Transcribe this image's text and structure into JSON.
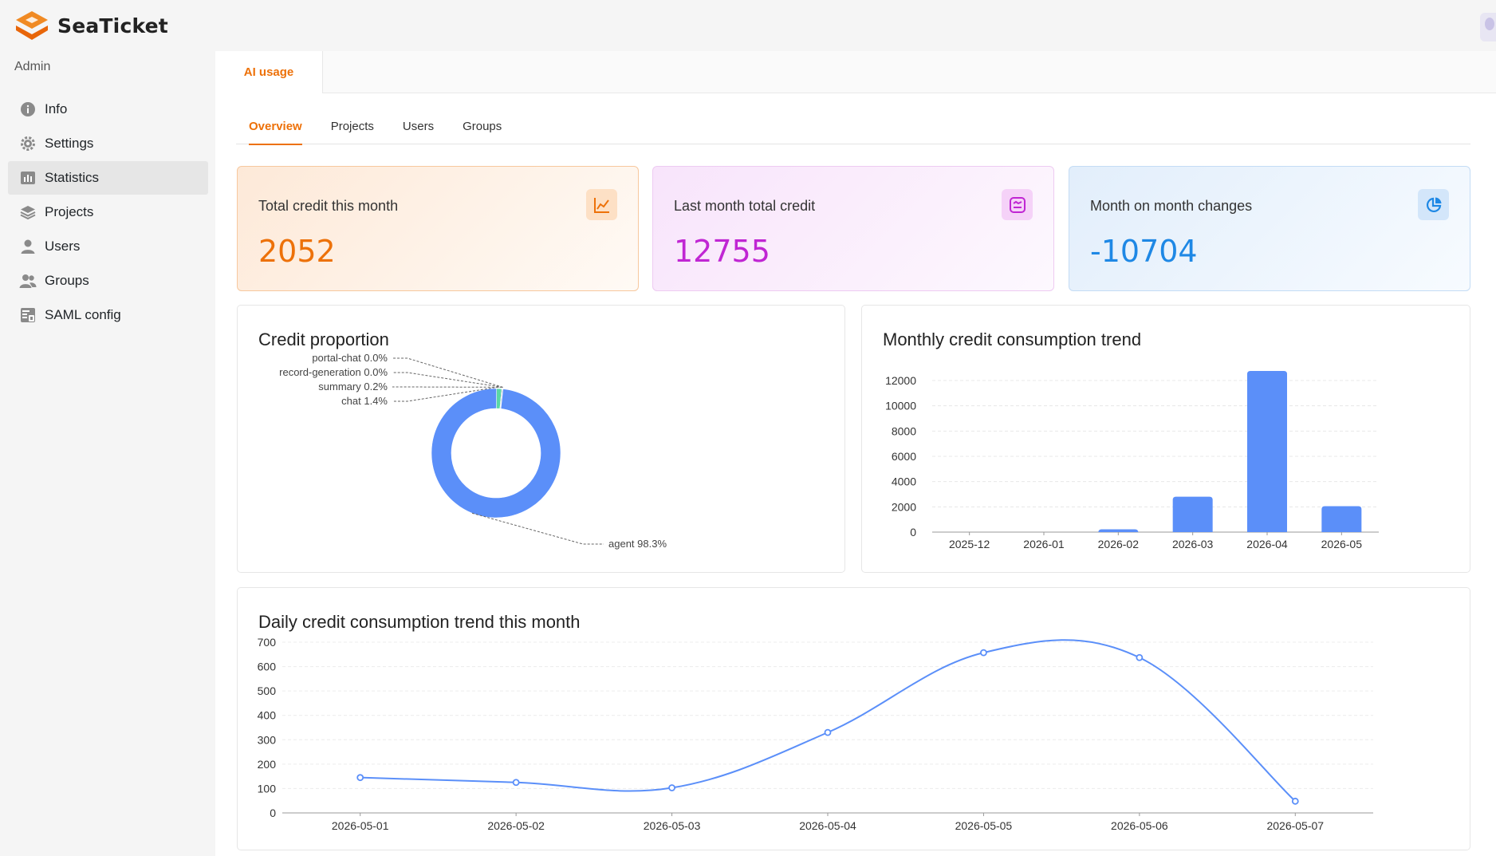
{
  "app": {
    "name": "SeaTicket",
    "brand_color": "#ed7109",
    "logo_icon": "seaticket-logo-icon",
    "avatar_icon": "user-avatar-icon"
  },
  "sidebar": {
    "title": "Admin",
    "items": [
      {
        "label": "Info",
        "icon": "info-icon",
        "active": false
      },
      {
        "label": "Settings",
        "icon": "gear-icon",
        "active": false
      },
      {
        "label": "Statistics",
        "icon": "bar-chart-icon",
        "active": true
      },
      {
        "label": "Projects",
        "icon": "layers-icon",
        "active": false
      },
      {
        "label": "Users",
        "icon": "user-icon",
        "active": false
      },
      {
        "label": "Groups",
        "icon": "users-icon",
        "active": false
      },
      {
        "label": "SAML config",
        "icon": "saml-icon",
        "active": false
      }
    ]
  },
  "main": {
    "top_tab": "AI usage",
    "sub_tabs": [
      {
        "label": "Overview",
        "active": true
      },
      {
        "label": "Projects",
        "active": false
      },
      {
        "label": "Users",
        "active": false
      },
      {
        "label": "Groups",
        "active": false
      }
    ],
    "cards": [
      {
        "title": "Total credit this month",
        "value": "2052",
        "icon": "line-chart-icon",
        "color": "#ed7109"
      },
      {
        "title": "Last month total credit",
        "value": "12755",
        "icon": "document-chart-icon",
        "color": "#c026d3"
      },
      {
        "title": "Month on month changes",
        "value": "-10704",
        "icon": "pie-chart-icon",
        "color": "#1e88e5"
      }
    ]
  },
  "chart_data": [
    {
      "type": "pie",
      "title": "Credit proportion",
      "slices": [
        {
          "name": "agent",
          "value": 98.3,
          "label": "agent 98.3%",
          "color": "#5b8ff9"
        },
        {
          "name": "chat",
          "value": 1.4,
          "label": "chat 1.4%",
          "color": "#5ad8a6"
        },
        {
          "name": "summary",
          "value": 0.2,
          "label": "summary 0.2%",
          "color": "#5d7092"
        },
        {
          "name": "record-generation",
          "value": 0.0,
          "label": "record-generation 0.0%",
          "color": "#f6bd16"
        },
        {
          "name": "portal-chat",
          "value": 0.0,
          "label": "portal-chat 0.0%",
          "color": "#e8684a"
        }
      ]
    },
    {
      "type": "bar",
      "title": "Monthly credit consumption trend",
      "categories": [
        "2025-12",
        "2026-01",
        "2026-02",
        "2026-03",
        "2026-04",
        "2026-05"
      ],
      "values": [
        0,
        0,
        220,
        2800,
        12755,
        2052
      ],
      "ylim": [
        0,
        12000
      ],
      "yticks": [
        0,
        2000,
        4000,
        6000,
        8000,
        10000,
        12000
      ],
      "color": "#5b8ff9",
      "grid": true
    },
    {
      "type": "line",
      "title": "Daily credit consumption trend this month",
      "x": [
        "2026-05-01",
        "2026-05-02",
        "2026-05-03",
        "2026-05-04",
        "2026-05-05",
        "2026-05-06",
        "2026-05-07"
      ],
      "values": [
        145,
        125,
        103,
        330,
        657,
        637,
        48
      ],
      "ylim": [
        0,
        700
      ],
      "yticks": [
        0,
        100,
        200,
        300,
        400,
        500,
        600,
        700
      ],
      "color": "#5b8ff9",
      "grid": true,
      "smooth": true
    }
  ]
}
